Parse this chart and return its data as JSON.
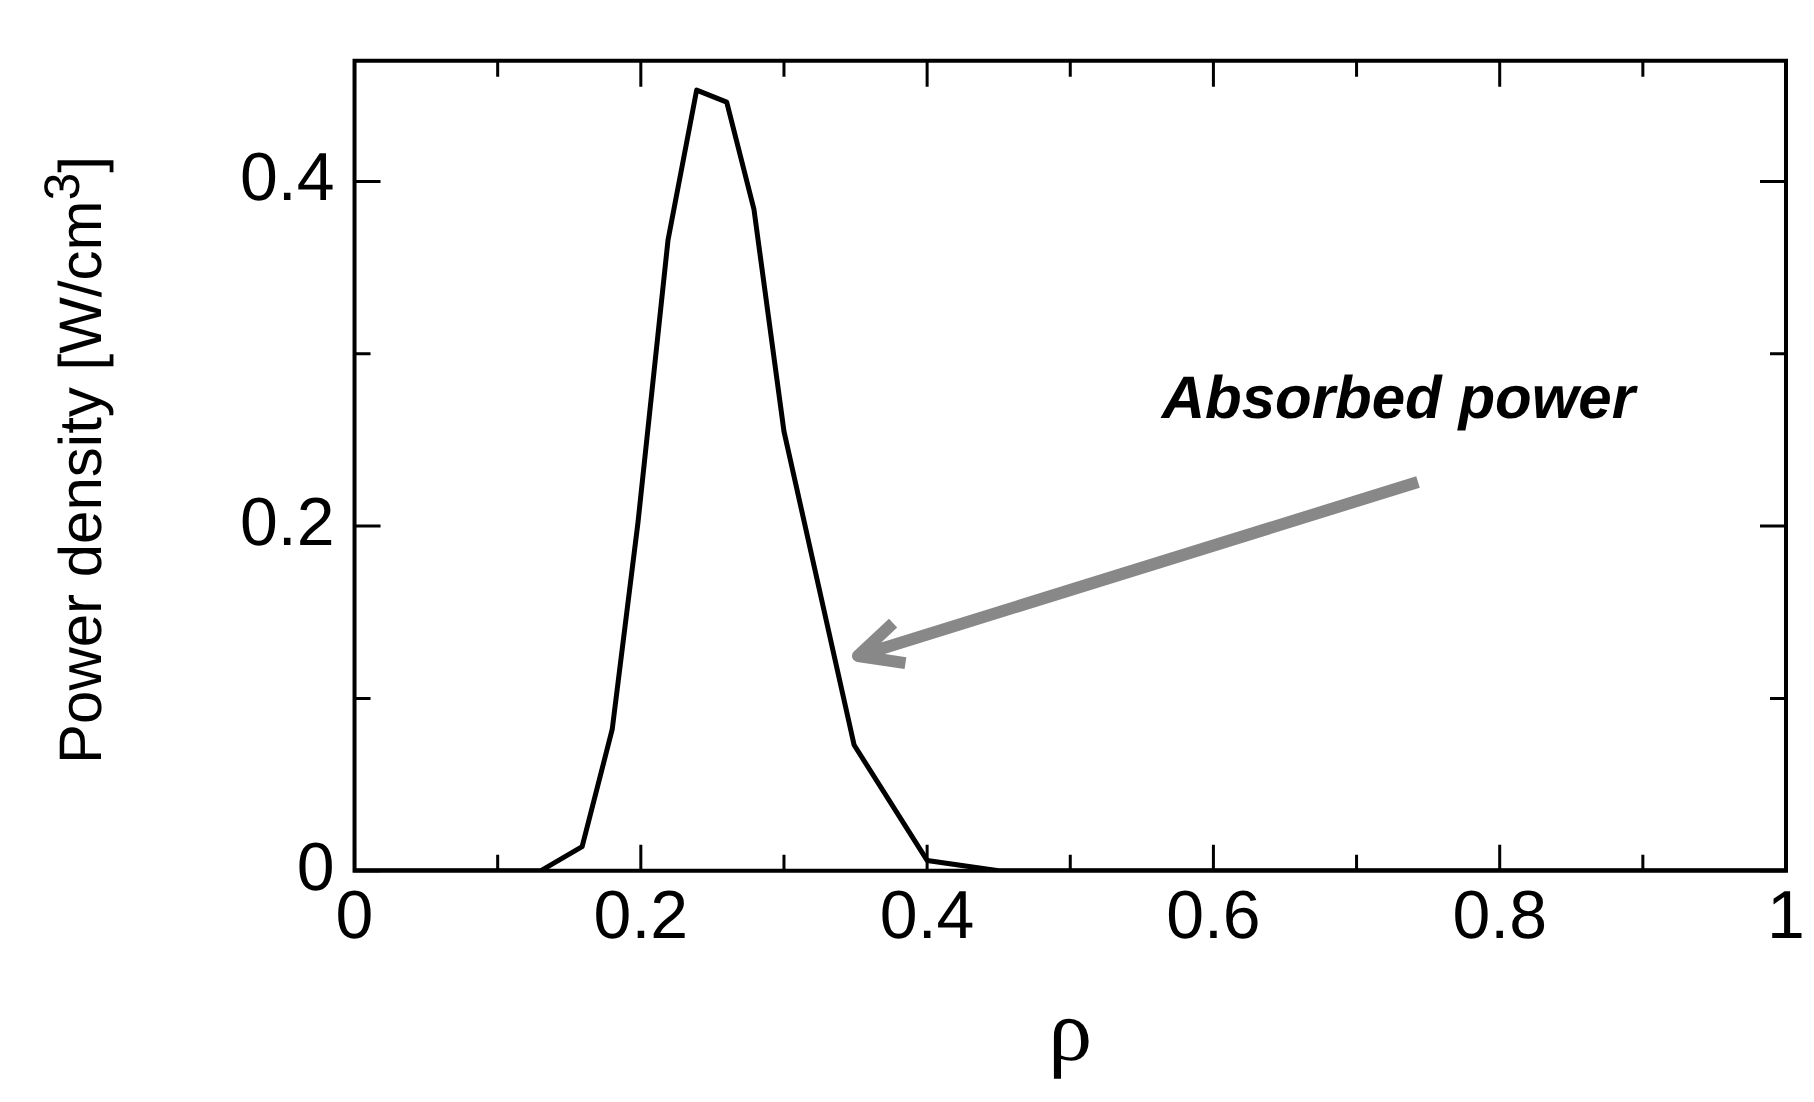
{
  "chart_data": {
    "type": "line",
    "xlabel": "ρ",
    "ylabel": "Power density [W/cm$^{3}$]",
    "x": [
      0,
      0.13,
      0.159,
      0.18,
      0.198,
      0.219,
      0.239,
      0.26,
      0.279,
      0.3,
      0.349,
      0.4,
      0.45,
      1
    ],
    "series": [
      {
        "color": "#000000",
        "values": [
          0,
          0,
          0.014,
          0.082,
          0.202,
          0.366,
          0.453,
          0.446,
          0.384,
          0.255,
          0.073,
          0.006,
          0,
          0
        ]
      }
    ],
    "xlim": [
      0,
      1
    ],
    "xticks": [
      0,
      {
        "value": 0.1,
        "label": null
      },
      0.2,
      {
        "value": 0.3,
        "label": null
      },
      0.4,
      {
        "value": 0.5,
        "label": null
      },
      0.6,
      {
        "value": 0.7,
        "label": null
      },
      0.8,
      {
        "value": 0.9,
        "label": null
      },
      1
    ],
    "ylim": [
      0,
      0.47
    ],
    "yticks": [
      0,
      {
        "value": 0.1,
        "label": null
      },
      0.2,
      {
        "value": 0.3,
        "label": null
      },
      0.4
    ],
    "annotations": [
      "Absorbed power"
    ],
    "grid": false,
    "legend": false,
    "marker": "none",
    "line_style": "solid"
  }
}
